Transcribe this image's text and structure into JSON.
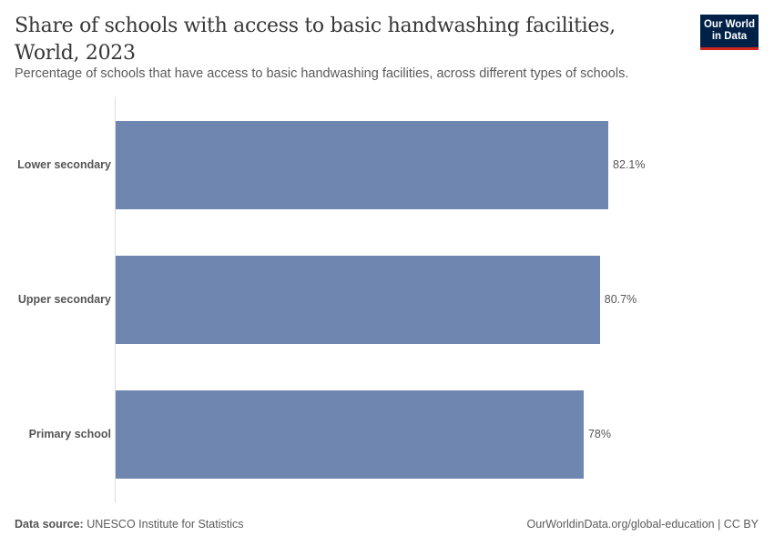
{
  "header": {
    "title": "Share of schools with access to basic handwashing facilities, World, 2023",
    "subtitle": "Percentage of schools that have access to basic handwashing facilities, across different types of schools.",
    "logo_line1": "Our World",
    "logo_line2": "in Data"
  },
  "footer": {
    "source_label": "Data source:",
    "source_value": " UNESCO Institute for Statistics",
    "url_license": "OurWorldinData.org/global-education | CC BY"
  },
  "colors": {
    "bar": "#6f87b0",
    "logo_bg": "#002147",
    "logo_accent": "#ce261e"
  },
  "chart_data": {
    "type": "bar",
    "orientation": "horizontal",
    "title": "Share of schools with access to basic handwashing facilities, World, 2023",
    "subtitle": "Percentage of schools that have access to basic handwashing facilities, across different types of schools.",
    "categories": [
      "Lower secondary",
      "Upper secondary",
      "Primary school"
    ],
    "values": [
      82.1,
      80.7,
      78
    ],
    "labels": [
      "82.1%",
      "80.7%",
      "78%"
    ],
    "xlabel": "",
    "ylabel": "",
    "unit": "%",
    "grid": false,
    "legend": "none"
  }
}
